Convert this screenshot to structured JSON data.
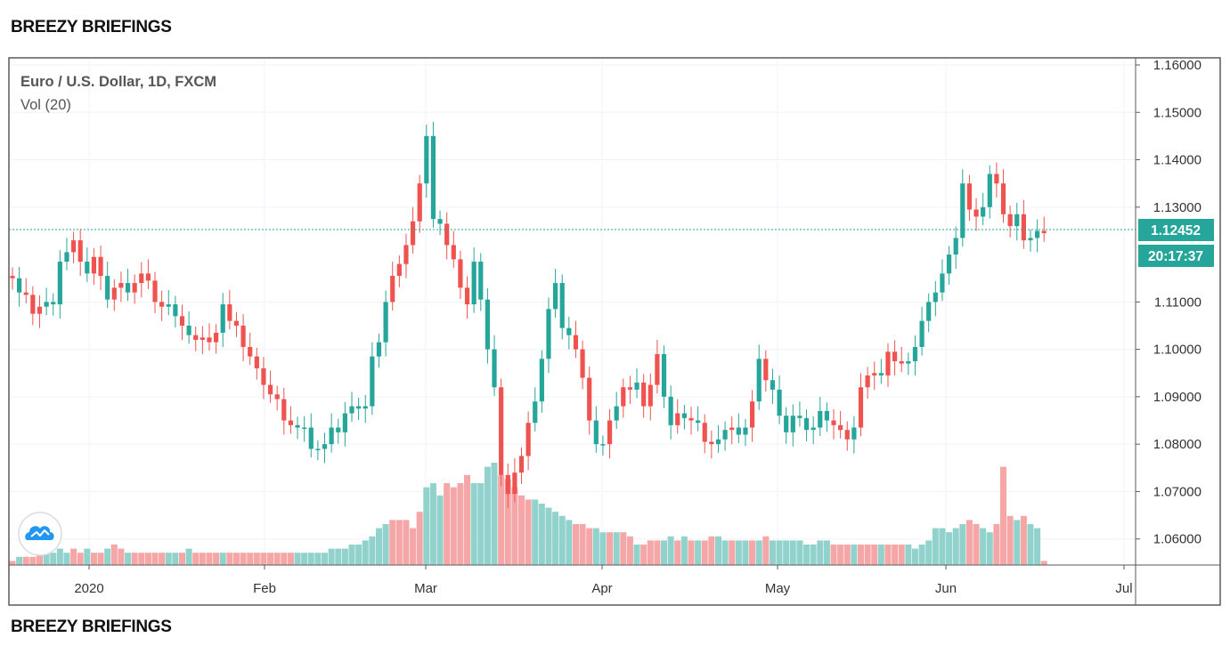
{
  "brand": {
    "top": "BREEZY BRIEFINGS",
    "bottom": "BREEZY BRIEFINGS"
  },
  "colors": {
    "up": "#26a69a",
    "down": "#ef5350",
    "up_vol": "#92d2cc",
    "down_vol": "#f5a6a6",
    "grid": "#f0f3fa"
  },
  "icons": {
    "logo": "cloud-logo-icon"
  },
  "chart_data": {
    "type": "candlestick",
    "title": "Euro / U.S. Dollar, 1D, FXCM",
    "volume_label": "Vol (20)",
    "last_price": "1.12452",
    "countdown": "20:17:37",
    "y_ticks": [
      "1.16000",
      "1.15000",
      "1.14000",
      "1.13000",
      "1.11000",
      "1.10000",
      "1.09000",
      "1.08000",
      "1.07000",
      "1.06000"
    ],
    "x_ticks": [
      "2020",
      "Feb",
      "Mar",
      "Apr",
      "May",
      "Jun",
      "Jul"
    ],
    "ylim": [
      1.0545,
      1.1615
    ],
    "grid": true,
    "direction": "du d dd uuuuddudd uddud ddd duu dudd dduddd dddd dd duuuu uuu uuu uuuud d dddu uudd dduuu udddd duuuuu ud dduud ud dudd duu dud udd uudu udud uuuu uu uuud ddudd dudd d",
    "closes": [
      1.115,
      1.112,
      1.1115,
      1.1075,
      1.109,
      1.11,
      1.1095,
      1.1185,
      1.1205,
      1.123,
      1.1185,
      1.116,
      1.1195,
      1.1155,
      1.1105,
      1.113,
      1.114,
      1.112,
      1.114,
      1.116,
      1.1145,
      1.11,
      1.109,
      1.1095,
      1.107,
      1.105,
      1.103,
      1.102,
      1.1025,
      1.1015,
      1.1035,
      1.1095,
      1.106,
      1.105,
      1.1005,
      1.0985,
      1.096,
      1.0925,
      1.0905,
      1.0895,
      1.085,
      1.084,
      1.0835,
      1.0835,
      1.079,
      1.079,
      1.08,
      1.0835,
      1.0825,
      1.0865,
      1.088,
      1.0875,
      1.088,
      1.0985,
      1.1015,
      1.11,
      1.1155,
      1.118,
      1.122,
      1.127,
      1.135,
      1.145,
      1.1275,
      1.1265,
      1.122,
      1.119,
      1.113,
      1.1095,
      1.1185,
      1.1105,
      1.1,
      1.092,
      1.0735,
      1.0695,
      1.074,
      1.0775,
      1.0845,
      1.089,
      1.098,
      1.1085,
      1.114,
      1.1045,
      1.103,
      1.1,
      1.094,
      1.085,
      1.08,
      1.08,
      1.085,
      1.088,
      1.092,
      1.0915,
      1.093,
      1.088,
      1.0925,
      1.099,
      1.09,
      1.084,
      1.0865,
      1.0855,
      1.085,
      1.0845,
      1.0805,
      1.08,
      1.081,
      1.083,
      1.0835,
      1.082,
      1.0835,
      1.089,
      1.098,
      1.0935,
      1.0915,
      1.086,
      1.0825,
      1.086,
      1.0855,
      1.083,
      1.0835,
      1.087,
      1.085,
      1.084,
      1.083,
      1.081,
      1.0835,
      1.092,
      1.0945,
      1.095,
      1.0945,
      1.0995,
      1.0975,
      1.097,
      1.0975,
      1.1005,
      1.106,
      1.11,
      1.112,
      1.116,
      1.12,
      1.1235,
      1.135,
      1.1295,
      1.128,
      1.13,
      1.137,
      1.135,
      1.1285,
      1.126,
      1.1285,
      1.123,
      1.1235,
      1.125,
      1.1245
    ],
    "volumes": [
      1,
      2,
      2,
      2,
      3,
      3,
      3,
      4,
      3,
      4,
      3,
      4,
      3,
      3,
      4,
      5,
      4,
      3,
      3,
      3,
      3,
      3,
      3,
      3,
      3,
      3,
      4,
      3,
      3,
      3,
      3,
      3,
      3,
      3,
      3,
      3,
      3,
      3,
      3,
      3,
      3,
      3,
      3,
      3,
      3,
      3,
      3,
      4,
      4,
      4,
      5,
      5,
      6,
      7,
      9,
      10,
      11,
      11,
      11,
      9,
      13,
      19,
      20,
      17,
      20,
      19,
      20,
      22,
      20,
      20,
      24,
      25,
      22,
      21,
      19,
      17,
      16,
      16,
      15,
      14,
      13,
      12,
      11,
      10,
      10,
      9,
      9,
      8,
      8,
      8,
      8,
      7,
      5,
      5,
      6,
      6,
      6,
      7,
      6,
      7,
      6,
      6,
      6,
      7,
      7,
      6,
      6,
      6,
      6,
      6,
      6,
      7,
      6,
      6,
      6,
      6,
      6,
      5,
      5,
      6,
      6,
      5,
      5,
      5,
      5,
      5,
      5,
      5,
      5,
      5,
      5,
      5,
      5,
      4,
      5,
      6,
      9,
      9,
      8,
      9,
      10,
      11,
      10,
      9,
      8,
      10,
      24,
      12,
      11,
      12,
      10,
      9,
      1
    ]
  }
}
